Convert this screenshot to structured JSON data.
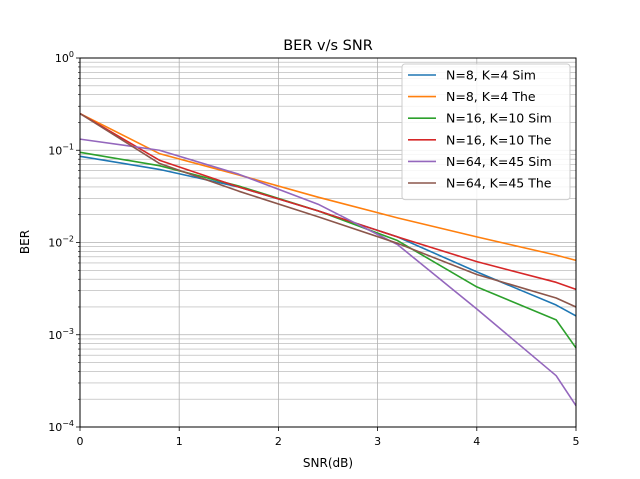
{
  "chart_data": {
    "type": "line",
    "title": "BER v/s SNR",
    "xlabel": "SNR(dB)",
    "ylabel": "BER",
    "xlim": [
      0,
      5
    ],
    "ylim": [
      0.0001,
      1
    ],
    "yscale": "log",
    "grid": "major and minor",
    "legend_position": "top-right",
    "x_ticks": [
      "0",
      "1",
      "2",
      "3",
      "4",
      "5"
    ],
    "y_ticks": [
      {
        "base": "10",
        "exp": "0"
      },
      {
        "base": "10",
        "exp": "-1"
      },
      {
        "base": "10",
        "exp": "-2"
      },
      {
        "base": "10",
        "exp": "-3"
      },
      {
        "base": "10",
        "exp": "-4"
      }
    ],
    "series": [
      {
        "name": "N=8, K=4 Sim",
        "color": "#1f77b4",
        "x": [
          0,
          0.8,
          1.6,
          2.4,
          3.2,
          4.0,
          4.8,
          5.0
        ],
        "y": [
          0.086,
          0.062,
          0.04,
          0.022,
          0.0115,
          0.0048,
          0.0021,
          0.0016
        ]
      },
      {
        "name": "N=8, K=4 The",
        "color": "#ff7f0e",
        "x": [
          0,
          0.8,
          1.6,
          2.4,
          3.2,
          4.0,
          4.8,
          5.0
        ],
        "y": [
          0.25,
          0.092,
          0.054,
          0.031,
          0.0185,
          0.0115,
          0.0073,
          0.0064
        ]
      },
      {
        "name": "N=16, K=10 Sim",
        "color": "#2ca02c",
        "x": [
          0,
          0.8,
          1.6,
          2.4,
          3.2,
          4.0,
          4.8,
          5.0
        ],
        "y": [
          0.095,
          0.068,
          0.041,
          0.022,
          0.0105,
          0.0033,
          0.00145,
          0.00072
        ]
      },
      {
        "name": "N=16, K=10 The",
        "color": "#d62728",
        "x": [
          0,
          0.8,
          1.6,
          2.4,
          3.2,
          4.0,
          4.8,
          5.0
        ],
        "y": [
          0.25,
          0.078,
          0.04,
          0.022,
          0.0115,
          0.0062,
          0.0037,
          0.0031
        ]
      },
      {
        "name": "N=64, K=45 Sim",
        "color": "#9467bd",
        "x": [
          0,
          0.8,
          1.6,
          2.4,
          3.2,
          4.0,
          4.8,
          5.0
        ],
        "y": [
          0.132,
          0.1,
          0.055,
          0.026,
          0.0095,
          0.0019,
          0.00036,
          0.00017
        ]
      },
      {
        "name": "N=64, K=45 The",
        "color": "#8c564b",
        "x": [
          0,
          0.8,
          1.6,
          2.4,
          3.2,
          4.0,
          4.8,
          5.0
        ],
        "y": [
          0.25,
          0.072,
          0.036,
          0.019,
          0.0098,
          0.0045,
          0.0025,
          0.002
        ]
      }
    ]
  }
}
